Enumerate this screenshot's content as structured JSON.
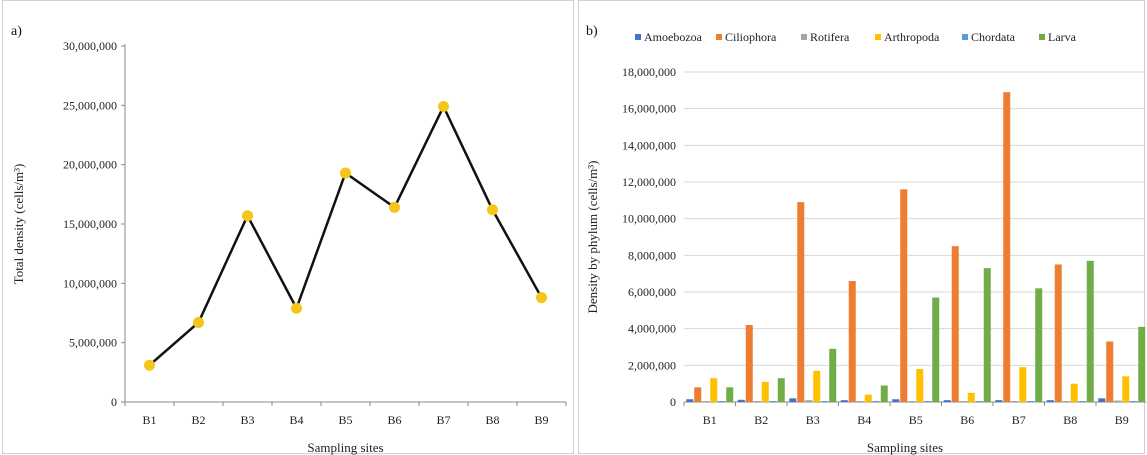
{
  "chart_data": [
    {
      "panel_label": "a)",
      "type": "line",
      "categories": [
        "B1",
        "B2",
        "B3",
        "B4",
        "B5",
        "B6",
        "B7",
        "B8",
        "B9"
      ],
      "values": [
        3100000,
        6700000,
        15700000,
        7900000,
        19300000,
        16400000,
        24900000,
        16200000,
        8800000
      ],
      "title": "",
      "xlabel": "Sampling sites",
      "ylabel": "Total density (cells/m³)",
      "ylim": [
        0,
        30000000
      ],
      "yticks": [
        "0",
        "5,000,000",
        "10,000,000",
        "15,000,000",
        "20,000,000",
        "25,000,000",
        "30,000,000"
      ],
      "grid": false,
      "line_color": "#111111",
      "marker_color": "#f5c518"
    },
    {
      "panel_label": "b)",
      "type": "bar",
      "categories": [
        "B1",
        "B2",
        "B3",
        "B4",
        "B5",
        "B6",
        "B7",
        "B8",
        "B9"
      ],
      "series": [
        {
          "name": "Amoebozoa",
          "color": "#4472c4",
          "values": [
            150000,
            120000,
            200000,
            100000,
            150000,
            100000,
            100000,
            100000,
            200000
          ]
        },
        {
          "name": "Ciliophora",
          "color": "#ed7d31",
          "values": [
            800000,
            4200000,
            10900000,
            6600000,
            11600000,
            8500000,
            16900000,
            7500000,
            3300000
          ]
        },
        {
          "name": "Rotifera",
          "color": "#a5a5a5",
          "values": [
            50000,
            50000,
            100000,
            50000,
            50000,
            50000,
            50000,
            50000,
            80000
          ]
        },
        {
          "name": "Arthropoda",
          "color": "#ffc000",
          "values": [
            1300000,
            1100000,
            1700000,
            400000,
            1800000,
            500000,
            1900000,
            1000000,
            1400000
          ]
        },
        {
          "name": "Chordata",
          "color": "#5b9bd5",
          "values": [
            20000,
            20000,
            20000,
            20000,
            20000,
            20000,
            20000,
            20000,
            20000
          ]
        },
        {
          "name": "Larva",
          "color": "#70ad47",
          "values": [
            800000,
            1300000,
            2900000,
            900000,
            5700000,
            7300000,
            6200000,
            7700000,
            4100000
          ]
        }
      ],
      "title": "",
      "xlabel": "Sampling sites",
      "ylabel": "Density by phylum (cells/m³)",
      "ylim": [
        0,
        18000000
      ],
      "yticks": [
        "0",
        "2,000,000",
        "4,000,000",
        "6,000,000",
        "8,000,000",
        "10,000,000",
        "12,000,000",
        "14,000,000",
        "16,000,000",
        "18,000,000"
      ],
      "grid": true,
      "legend_position": "top"
    }
  ]
}
